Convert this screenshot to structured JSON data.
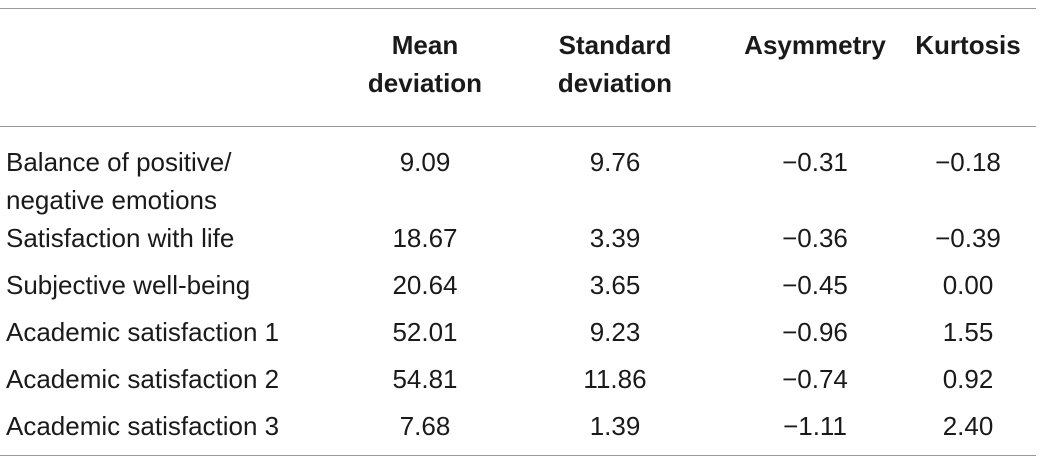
{
  "table": {
    "columns": [
      {
        "line1": "",
        "line2": ""
      },
      {
        "line1": "Mean",
        "line2": "deviation"
      },
      {
        "line1": "Standard",
        "line2": "deviation"
      },
      {
        "line1": "Asymmetry",
        "line2": ""
      },
      {
        "line1": "Kurtosis",
        "line2": ""
      }
    ],
    "rows": [
      {
        "label_line1": "Balance of positive/",
        "label_line2": "negative emotions",
        "mean": "9.09",
        "sd": "9.76",
        "asym": "−0.31",
        "kurt": "−0.18"
      },
      {
        "label_line1": "Satisfaction with life",
        "label_line2": "",
        "mean": "18.67",
        "sd": "3.39",
        "asym": "−0.36",
        "kurt": "−0.39"
      },
      {
        "label_line1": "Subjective well-being",
        "label_line2": "",
        "mean": "20.64",
        "sd": "3.65",
        "asym": "−0.45",
        "kurt": "0.00"
      },
      {
        "label_line1": "Academic satisfaction 1",
        "label_line2": "",
        "mean": "52.01",
        "sd": "9.23",
        "asym": "−0.96",
        "kurt": "1.55"
      },
      {
        "label_line1": "Academic satisfaction 2",
        "label_line2": "",
        "mean": "54.81",
        "sd": "11.86",
        "asym": "−0.74",
        "kurt": "0.92"
      },
      {
        "label_line1": "Academic satisfaction 3",
        "label_line2": "",
        "mean": "7.68",
        "sd": "1.39",
        "asym": "−1.11",
        "kurt": "2.40"
      }
    ]
  }
}
